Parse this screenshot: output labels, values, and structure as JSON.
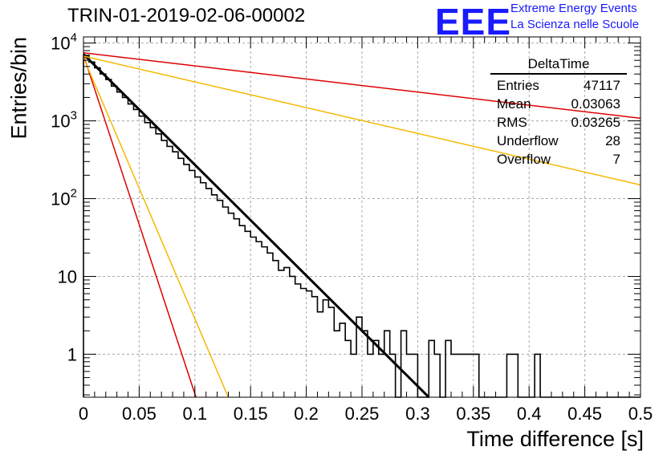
{
  "title": "TRIN-01-2019-02-06-00002",
  "brand": {
    "logo": "EEE",
    "line1": "Extreme Energy Events",
    "line2": "La Scienza nelle Scuole",
    "color": "#1a1aff"
  },
  "stats_box": {
    "name": "DeltaTime",
    "rows": [
      {
        "label": "Entries",
        "value": "47117"
      },
      {
        "label": "Mean",
        "value": "0.03063"
      },
      {
        "label": "RMS",
        "value": "0.03265"
      },
      {
        "label": "Underflow",
        "value": "28"
      },
      {
        "label": "Overflow",
        "value": "7"
      }
    ]
  },
  "chart_data": {
    "type": "line",
    "title": "TRIN-01-2019-02-06-00002",
    "xlabel": "Time difference [s]",
    "ylabel": "Entries/bin",
    "xlim": [
      0,
      0.5
    ],
    "ylim": [
      0.28,
      12000
    ],
    "yscale": "log",
    "grid": true,
    "x_ticks": [
      "0",
      "0.05",
      "0.1",
      "0.15",
      "0.2",
      "0.25",
      "0.3",
      "0.35",
      "0.4",
      "0.45",
      "0.5"
    ],
    "y_ticks": [
      {
        "value": 1,
        "base": "1",
        "exp": ""
      },
      {
        "value": 10,
        "base": "10",
        "exp": ""
      },
      {
        "value": 100,
        "base": "10",
        "exp": "2"
      },
      {
        "value": 1000,
        "base": "10",
        "exp": "3"
      },
      {
        "value": 10000,
        "base": "10",
        "exp": "4"
      }
    ],
    "histogram": {
      "bin_width": 0.005,
      "color": "#000000",
      "values": [
        6800,
        5700,
        4800,
        4000,
        3400,
        2800,
        2350,
        2000,
        1650,
        1400,
        1150,
        950,
        820,
        680,
        560,
        470,
        400,
        330,
        275,
        230,
        190,
        160,
        135,
        112,
        95,
        78,
        65,
        55,
        45,
        38,
        32,
        28,
        24,
        20,
        16,
        12,
        13,
        10,
        8,
        7,
        6.5,
        5.5,
        3.5,
        5,
        4,
        2,
        2.5,
        1.5,
        1,
        3,
        2,
        1,
        1.5,
        1,
        2,
        1,
        0.1,
        2,
        1,
        1,
        0.1,
        0.1,
        1.5,
        1,
        0.1,
        1.5,
        1,
        1,
        1,
        1,
        1,
        0.1,
        0.1,
        0.1,
        0.1,
        0.1,
        1,
        1,
        0.1,
        0.1,
        0.1,
        1,
        0.1,
        0.1,
        0.1,
        0.1,
        0.1,
        0.1,
        0.1,
        0.1,
        0.1,
        0.1,
        0.1,
        0.1,
        0.1,
        0.1,
        0.1,
        0.1,
        0.1,
        0.1
      ]
    },
    "series": [
      {
        "color": "#000000",
        "width": 3,
        "points": [
          [
            0,
            7200
          ],
          [
            0.31,
            0.28
          ]
        ]
      },
      {
        "color": "#dd0000",
        "width": 1.5,
        "points": [
          [
            0,
            7000
          ],
          [
            0.101,
            0.28
          ]
        ]
      },
      {
        "color": "#f5b800",
        "width": 1.5,
        "points": [
          [
            0,
            6500
          ],
          [
            0.13,
            0.28
          ]
        ]
      },
      {
        "color": "#dd0000",
        "width": 1.5,
        "points": [
          [
            0,
            7500
          ],
          [
            0.5,
            1080
          ]
        ]
      },
      {
        "color": "#f5b800",
        "width": 1.5,
        "points": [
          [
            0,
            6800
          ],
          [
            0.5,
            150
          ]
        ]
      }
    ]
  }
}
